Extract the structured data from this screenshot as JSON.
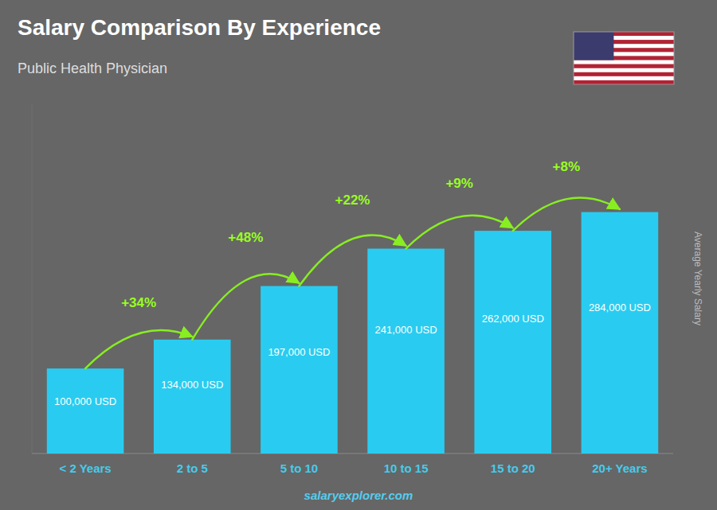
{
  "chart_data": {
    "type": "bar",
    "title": "Salary Comparison By Experience",
    "subtitle": "Public Health Physician",
    "categories": [
      "< 2 Years",
      "2 to 5",
      "5 to 10",
      "10 to 15",
      "15 to 20",
      "20+ Years"
    ],
    "values": [
      100000,
      134000,
      197000,
      241000,
      262000,
      284000
    ],
    "value_labels": [
      "100,000 USD",
      "134,000 USD",
      "197,000 USD",
      "241,000 USD",
      "262,000 USD",
      "284,000 USD"
    ],
    "data_labels": true,
    "color": "#29ccf0",
    "ylim": [
      0,
      411800
    ],
    "ylabel": "Average Yearly Salary",
    "annotations": [
      "+34%",
      "+48%",
      "+22%",
      "+9%",
      "+8%"
    ],
    "footer": "salaryexplorer.com",
    "grid": false,
    "tick_labels": "x"
  }
}
